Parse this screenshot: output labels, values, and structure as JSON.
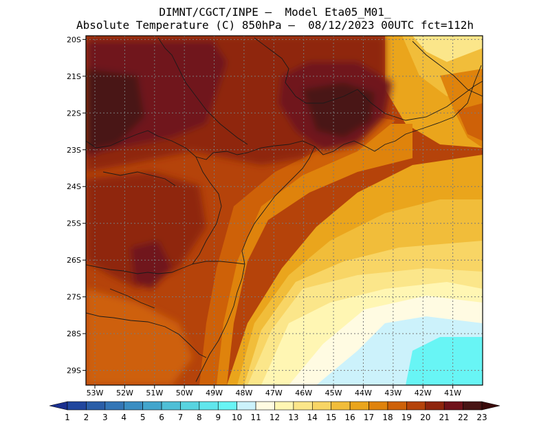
{
  "header": {
    "line1": "DIMNT/CGCT/INPE –  Model Eta05_M01_",
    "line2": "Absolute Temperature (C) 850hPa –  08/12/2023 00UTC fct=112h"
  },
  "map": {
    "variable": "Absolute Temperature (C) 850hPa",
    "lat_labels": [
      "20S",
      "21S",
      "22S",
      "23S",
      "24S",
      "25S",
      "26S",
      "27S",
      "28S",
      "29S"
    ],
    "lon_labels": [
      "53W",
      "52W",
      "51W",
      "50W",
      "49W",
      "48W",
      "47W",
      "46W",
      "45W",
      "44W",
      "43W",
      "42W",
      "41W"
    ],
    "lat_range": [
      -29.4,
      -19.9
    ],
    "lon_range": [
      -53.3,
      -40.0
    ]
  },
  "colorbar": {
    "labels": [
      "1",
      "2",
      "3",
      "4",
      "5",
      "6",
      "7",
      "8",
      "9",
      "10",
      "11",
      "12",
      "13",
      "14",
      "15",
      "16",
      "17",
      "18",
      "19",
      "20",
      "21",
      "22",
      "23"
    ],
    "colors": [
      "#1a2f8f",
      "#20469e",
      "#2a5ea8",
      "#3376b6",
      "#3a8ec2",
      "#42a5cc",
      "#4fbfd6",
      "#58d4e0",
      "#60e6ec",
      "#68f5f5",
      "#ccf2fb",
      "#fffbe2",
      "#fff6b3",
      "#fbe68a",
      "#f8d565",
      "#f1bd3a",
      "#eaa51c",
      "#df830c",
      "#ce6108",
      "#b5430a",
      "#8f250d",
      "#70121a",
      "#481414",
      "#3a0a0a"
    ]
  }
}
